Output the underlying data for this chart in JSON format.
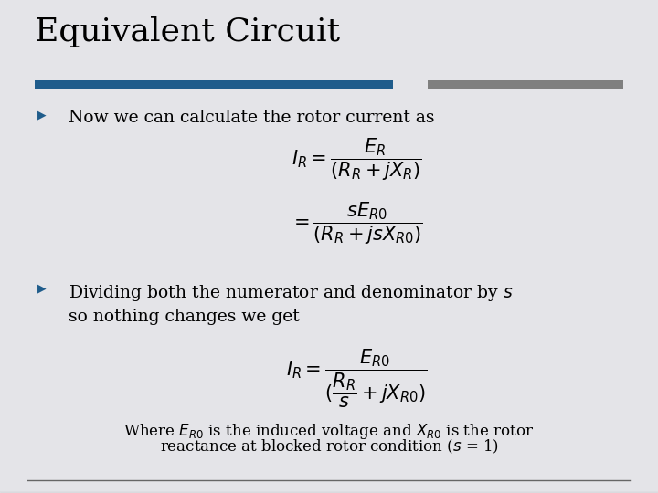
{
  "title": "Equivalent Circuit",
  "bg_color": "#e4e4e8",
  "title_color": "#000000",
  "title_fontsize": 26,
  "bar_blue": "#1F5C8B",
  "bar_grey": "#7f7f7f",
  "bullet_color": "#1F5C8B",
  "text_color": "#000000",
  "text_fontsize": 13.5,
  "eq_fontsize": 14,
  "where_fontsize": 12,
  "bottom_line_color": "#666666",
  "stripe_light": "#e8e8ec",
  "stripe_dark": "#dadade"
}
